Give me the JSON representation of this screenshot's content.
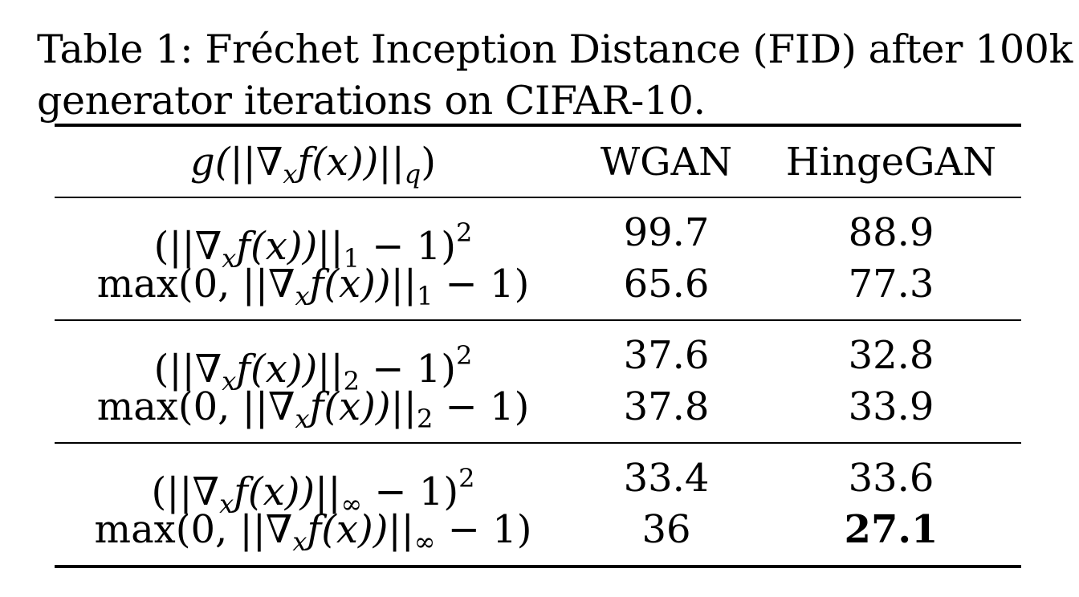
{
  "caption": {
    "line1": "Table 1: Fréchet Inception Distance (FID) after 100k",
    "line2": "generator iterations on CIFAR-10."
  },
  "table": {
    "header": {
      "expr_head": "g(||∇",
      "expr_sub_x": "x",
      "expr_mid": "f(x))||",
      "expr_sub_q": "q",
      "expr_tail": ")",
      "wgan": "WGAN",
      "hinge": "HingeGAN"
    },
    "groups": [
      {
        "rows": [
          {
            "form": "square",
            "norm": "1",
            "wgan": "99.7",
            "hinge": "88.9",
            "hinge_bold": false
          },
          {
            "form": "max",
            "norm": "1",
            "wgan": "65.6",
            "hinge": "77.3",
            "hinge_bold": false
          }
        ]
      },
      {
        "rows": [
          {
            "form": "square",
            "norm": "2",
            "wgan": "37.6",
            "hinge": "32.8",
            "hinge_bold": false
          },
          {
            "form": "max",
            "norm": "2",
            "wgan": "37.8",
            "hinge": "33.9",
            "hinge_bold": false
          }
        ]
      },
      {
        "rows": [
          {
            "form": "square",
            "norm": "∞",
            "wgan": "33.4",
            "hinge": "33.6",
            "hinge_bold": false
          },
          {
            "form": "max",
            "norm": "∞",
            "wgan": "36",
            "hinge": "27.1",
            "hinge_bold": true
          }
        ]
      }
    ]
  }
}
